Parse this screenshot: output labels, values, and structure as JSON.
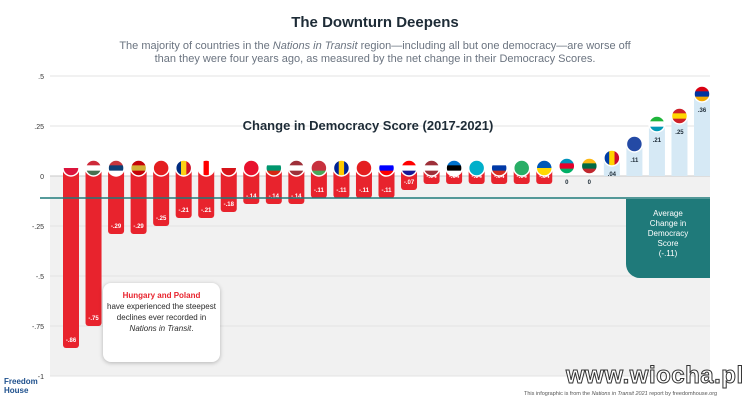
{
  "title": "The Downturn Deepens",
  "subtitle_parts": [
    "The majority of countries in the ",
    "Nations in Transit",
    " region—including all but one democracy—are worse off than they were four years ago, as measured by the net change in their Democracy Scores."
  ],
  "annotation": {
    "highlight": "Hungary and Poland",
    "text": "have experienced the steepest declines ever recorded in ",
    "italic": "Nations in Transit",
    "end": "."
  },
  "average_box": {
    "lines": [
      "Average",
      "Change in",
      "Democracy",
      "Score"
    ],
    "value_label": "(-.11)"
  },
  "brand": [
    "Freedom",
    "House"
  ],
  "footer_parts": [
    "This infographic is from the ",
    "Nations in Transit 2021",
    " report by freedomhouse.org"
  ],
  "watermark": "www.wiocha.pl",
  "colors": {
    "negative": "#e8232d",
    "positive": "#d6e9f5",
    "average_line": "#1f7a7a",
    "plot_bg": "#f1f1f1",
    "text": "#1d2b36"
  },
  "chart_data": {
    "type": "bar",
    "title": "Change in Democracy Score (2017-2021)",
    "ylim": [
      -1,
      0.5
    ],
    "y_ticks": [
      0.5,
      0.25,
      0,
      -0.25,
      -0.5,
      -0.75,
      -1
    ],
    "y_tick_labels": [
      ".5",
      ".25",
      "0",
      "-.25",
      "-.5",
      "-.75",
      "-1"
    ],
    "average": -0.11,
    "values": [
      -0.86,
      -0.75,
      -0.29,
      -0.29,
      -0.25,
      -0.21,
      -0.21,
      -0.18,
      -0.14,
      -0.14,
      -0.14,
      -0.11,
      -0.11,
      -0.11,
      -0.11,
      -0.07,
      -0.04,
      -0.04,
      -0.04,
      -0.04,
      -0.04,
      -0.04,
      0,
      0,
      0.04,
      0.11,
      0.21,
      0.25,
      0.36
    ],
    "value_labels": [
      "-.86",
      "-.75",
      "-.29",
      "-.29",
      "-.25",
      "-.21",
      "-.21",
      "-.18",
      "-.14",
      "-.14",
      "-.14",
      "-.11",
      "-.11",
      "-.11",
      "-.11",
      "-.07",
      "-.04",
      "-.04",
      "-.04",
      "-.04",
      "-.04",
      "-.04",
      "0",
      "0",
      ".04",
      ".11",
      ".21",
      ".25",
      ".36"
    ],
    "flag_icons": [
      "poland-flag-icon",
      "hungary-flag-icon",
      "serbia-flag-icon",
      "montenegro-flag-icon",
      "albania-flag-icon",
      "romania-flag-icon",
      "georgia-flag-icon",
      "czech-republic-flag-icon",
      "kyrgyzstan-flag-icon",
      "bulgaria-flag-icon",
      "latvia-flag-icon",
      "belarus-flag-icon",
      "bosnia-flag-icon",
      "albania-flag-icon",
      "slovenia-flag-icon",
      "croatia-flag-icon",
      "latvia-flag-icon",
      "estonia-flag-icon",
      "kazakhstan-flag-icon",
      "russia-flag-icon",
      "turkmenistan-flag-icon",
      "ukraine-flag-icon",
      "azerbaijan-flag-icon",
      "lithuania-flag-icon",
      "moldova-flag-icon",
      "kosovo-flag-icon",
      "uzbekistan-flag-icon",
      "north-macedonia-flag-icon",
      "armenia-flag-icon"
    ],
    "flags": [
      {
        "stripes": [
          "#ffffff",
          "#dc143c"
        ],
        "dir": "h"
      },
      {
        "stripes": [
          "#ce2939",
          "#ffffff",
          "#477050"
        ],
        "dir": "h"
      },
      {
        "stripes": [
          "#c6363c",
          "#0c4076",
          "#ffffff"
        ],
        "dir": "h"
      },
      {
        "stripes": [
          "#c40308",
          "#d4af37",
          "#c40308"
        ],
        "dir": "h"
      },
      {
        "stripes": [
          "#e41e20",
          "#e41e20"
        ],
        "dir": "h"
      },
      {
        "stripes": [
          "#002b7f",
          "#fcd116",
          "#ce1126"
        ],
        "dir": "v"
      },
      {
        "stripes": [
          "#ffffff",
          "#ff0000",
          "#ffffff"
        ],
        "dir": "v"
      },
      {
        "stripes": [
          "#ffffff",
          "#d7141a"
        ],
        "dir": "h"
      },
      {
        "stripes": [
          "#e8112d",
          "#e8112d"
        ],
        "dir": "h"
      },
      {
        "stripes": [
          "#ffffff",
          "#00966e",
          "#d62612"
        ],
        "dir": "h"
      },
      {
        "stripes": [
          "#9e3039",
          "#ffffff",
          "#9e3039"
        ],
        "dir": "h"
      },
      {
        "stripes": [
          "#c8313e",
          "#c8313e",
          "#4aa657"
        ],
        "dir": "h"
      },
      {
        "stripes": [
          "#002395",
          "#fecb00",
          "#002395"
        ],
        "dir": "v"
      },
      {
        "stripes": [
          "#e41e20",
          "#e41e20"
        ],
        "dir": "h"
      },
      {
        "stripes": [
          "#ffffff",
          "#0000ff",
          "#ff0000"
        ],
        "dir": "h"
      },
      {
        "stripes": [
          "#ff0000",
          "#ffffff",
          "#171796"
        ],
        "dir": "h"
      },
      {
        "stripes": [
          "#9e3039",
          "#ffffff",
          "#9e3039"
        ],
        "dir": "h"
      },
      {
        "stripes": [
          "#0072ce",
          "#000000",
          "#ffffff"
        ],
        "dir": "h"
      },
      {
        "stripes": [
          "#00afca",
          "#00afca"
        ],
        "dir": "h"
      },
      {
        "stripes": [
          "#ffffff",
          "#0039a6",
          "#d52b1e"
        ],
        "dir": "h"
      },
      {
        "stripes": [
          "#28ae66",
          "#28ae66"
        ],
        "dir": "h"
      },
      {
        "stripes": [
          "#0057b7",
          "#ffd700"
        ],
        "dir": "h"
      },
      {
        "stripes": [
          "#0092bc",
          "#e4002b",
          "#00af66"
        ],
        "dir": "h"
      },
      {
        "stripes": [
          "#fdb913",
          "#006a44",
          "#c1272d"
        ],
        "dir": "h"
      },
      {
        "stripes": [
          "#003da5",
          "#ffd200",
          "#cc092f"
        ],
        "dir": "v"
      },
      {
        "stripes": [
          "#244aa5",
          "#244aa5"
        ],
        "dir": "h"
      },
      {
        "stripes": [
          "#1eb53a",
          "#ffffff",
          "#0099b5"
        ],
        "dir": "h"
      },
      {
        "stripes": [
          "#ce2028",
          "#ffd700",
          "#ce2028"
        ],
        "dir": "h"
      },
      {
        "stripes": [
          "#d90012",
          "#0033a0",
          "#f2a800"
        ],
        "dir": "h"
      }
    ]
  }
}
